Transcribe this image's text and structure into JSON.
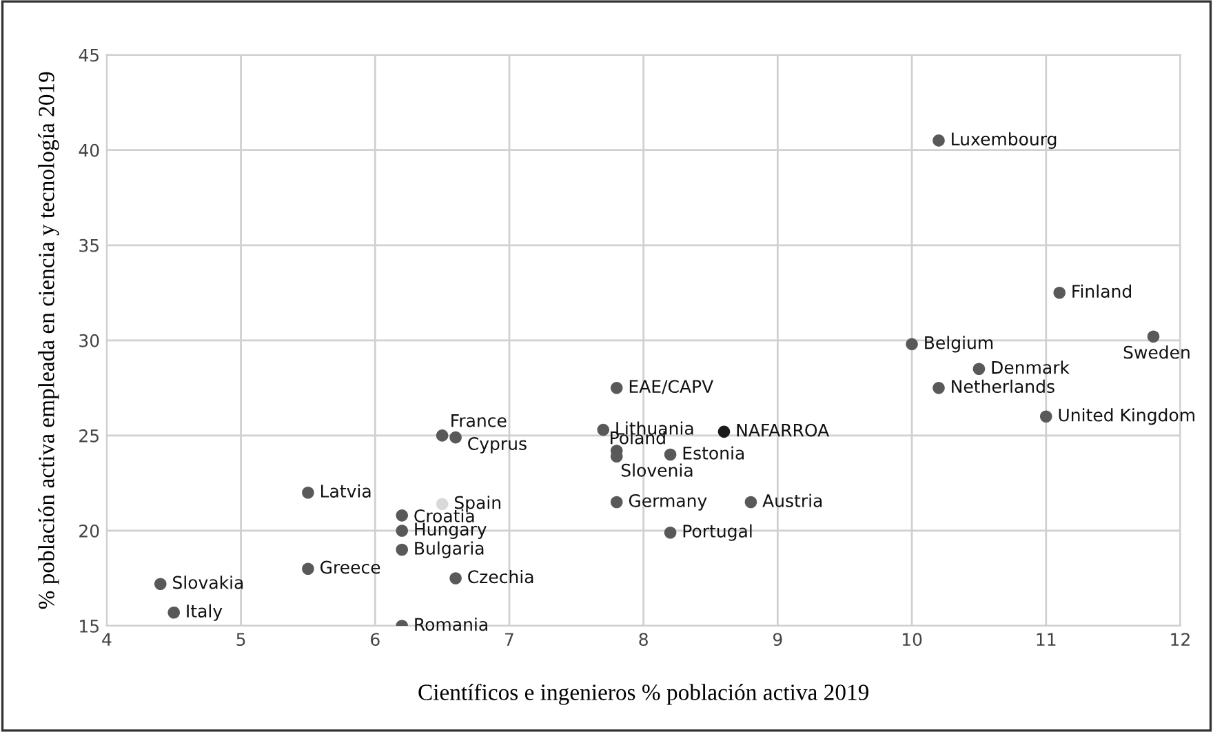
{
  "chart_data": {
    "type": "scatter",
    "xlabel": "Científicos e ingenieros % población activa 2019",
    "ylabel": "% población activa empleada en ciencia y tecnología 2019",
    "x": [
      4.4,
      4.5,
      5.5,
      5.5,
      6.5,
      6.6,
      6.5,
      6.2,
      6.2,
      6.2,
      6.6,
      6.2,
      7.8,
      7.7,
      7.8,
      7.8,
      8.2,
      8.6,
      7.8,
      8.8,
      8.2,
      10.2,
      11.1,
      10.0,
      11.8,
      10.5,
      10.2,
      11.0
    ],
    "values": [
      17.2,
      15.7,
      22.0,
      18.0,
      25.0,
      24.9,
      21.4,
      20.8,
      20.0,
      19.0,
      17.5,
      15.0,
      27.5,
      25.3,
      24.2,
      23.9,
      24.0,
      25.2,
      21.5,
      21.5,
      19.9,
      40.5,
      32.5,
      29.8,
      30.2,
      28.5,
      27.5,
      26.0
    ],
    "colors": [
      "#595959",
      "#595959",
      "#595959",
      "#595959",
      "#595959",
      "#595959",
      "#d9d9d9",
      "#595959",
      "#595959",
      "#595959",
      "#595959",
      "#595959",
      "#595959",
      "#595959",
      "#595959",
      "#595959",
      "#595959",
      "#1a1a1a",
      "#595959",
      "#595959",
      "#595959",
      "#595959",
      "#595959",
      "#595959",
      "#595959",
      "#595959",
      "#595959",
      "#595959"
    ],
    "annotations": [
      {
        "text": "Slovakia",
        "x": 4.4,
        "y": 17.2
      },
      {
        "text": "Italy",
        "x": 4.5,
        "y": 15.7
      },
      {
        "text": "Latvia",
        "x": 5.5,
        "y": 22.0
      },
      {
        "text": "Greece",
        "x": 5.5,
        "y": 18.0
      },
      {
        "text": "France",
        "x": 6.5,
        "y": 25.0
      },
      {
        "text": "Cyprus",
        "x": 6.6,
        "y": 24.9
      },
      {
        "text": "Spain",
        "x": 6.5,
        "y": 21.4
      },
      {
        "text": "Croatia",
        "x": 6.2,
        "y": 20.8
      },
      {
        "text": "Hungary",
        "x": 6.2,
        "y": 20.0
      },
      {
        "text": "Bulgaria",
        "x": 6.2,
        "y": 19.0
      },
      {
        "text": "Czechia",
        "x": 6.6,
        "y": 17.5
      },
      {
        "text": "Romania",
        "x": 6.2,
        "y": 15.0
      },
      {
        "text": "EAE/CAPV",
        "x": 7.8,
        "y": 27.5
      },
      {
        "text": "Lithuania",
        "x": 7.7,
        "y": 25.3
      },
      {
        "text": "Poland",
        "x": 7.8,
        "y": 24.2
      },
      {
        "text": "Slovenia",
        "x": 7.8,
        "y": 23.9
      },
      {
        "text": "Estonia",
        "x": 8.2,
        "y": 24.0
      },
      {
        "text": "NAFARROA",
        "x": 8.6,
        "y": 25.2
      },
      {
        "text": "Germany",
        "x": 7.8,
        "y": 21.5
      },
      {
        "text": "Austria",
        "x": 8.8,
        "y": 21.5
      },
      {
        "text": "Portugal",
        "x": 8.2,
        "y": 19.9
      },
      {
        "text": "Luxembourg",
        "x": 10.2,
        "y": 40.5
      },
      {
        "text": "Finland",
        "x": 11.1,
        "y": 32.5
      },
      {
        "text": "Belgium",
        "x": 10.0,
        "y": 29.8
      },
      {
        "text": "Sweden",
        "x": 11.8,
        "y": 30.2
      },
      {
        "text": "Denmark",
        "x": 10.5,
        "y": 28.5
      },
      {
        "text": "Netherlands",
        "x": 10.2,
        "y": 27.5
      },
      {
        "text": "United Kingdom",
        "x": 11.0,
        "y": 26.0
      }
    ],
    "xlim": [
      4,
      12
    ],
    "xticks": [
      4,
      5,
      6,
      7,
      8,
      9,
      10,
      11,
      12
    ],
    "ylim": [
      15,
      45
    ],
    "yticks": [
      15,
      20,
      25,
      30,
      35,
      40,
      45
    ],
    "grid": true,
    "marker": "circle"
  }
}
